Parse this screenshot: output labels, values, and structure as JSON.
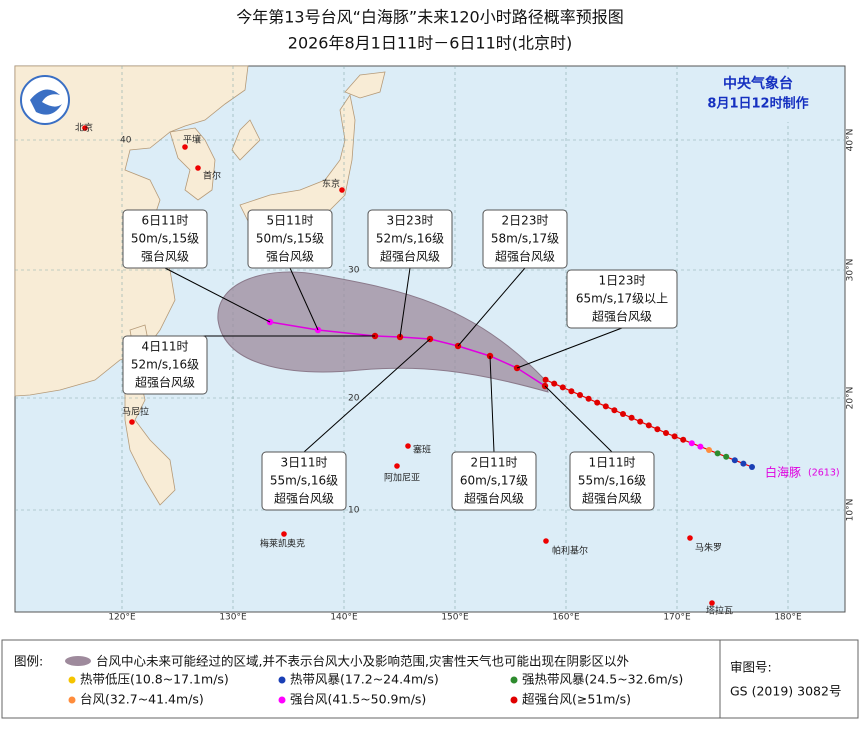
{
  "header": {
    "title": "今年第13号台风“白海豚”未来120小时路径概率预报图",
    "subtitle": "2026年8月1日11时－6日11时(北京时)"
  },
  "agency": {
    "name": "中央气象台",
    "issued": "8月1日12时制作"
  },
  "map": {
    "cities": [
      "北京",
      "平壤",
      "首尔",
      "东京",
      "马尼拉",
      "塞班",
      "阿加尼亚",
      "梅莱凯奥克",
      "帕利基尔",
      "马朱罗",
      "塔拉瓦"
    ],
    "lon_labels": [
      "120°E",
      "130°E",
      "140°E",
      "150°E",
      "160°E",
      "170°E",
      "180°E"
    ],
    "lat_labels": [
      "40°N",
      "30°N",
      "20°N",
      "10°N"
    ],
    "grid_labels": [
      "40",
      "30",
      "20",
      "10"
    ]
  },
  "typhoon": {
    "name": "白海豚",
    "number": "(2613)"
  },
  "forecasts": [
    {
      "time": "6日11时",
      "wind": "50m/s,15级",
      "category": "强台风级"
    },
    {
      "time": "5日11时",
      "wind": "50m/s,15级",
      "category": "强台风级"
    },
    {
      "time": "3日23时",
      "wind": "52m/s,16级",
      "category": "超强台风级"
    },
    {
      "time": "2日23时",
      "wind": "58m/s,17级",
      "category": "超强台风级"
    },
    {
      "time": "1日23时",
      "wind": "65m/s,17级以上",
      "category": "超强台风级"
    },
    {
      "time": "4日11时",
      "wind": "52m/s,16级",
      "category": "超强台风级"
    },
    {
      "time": "3日11时",
      "wind": "55m/s,16级",
      "category": "超强台风级"
    },
    {
      "time": "2日11时",
      "wind": "60m/s,17级",
      "category": "超强台风级"
    },
    {
      "time": "1日11时",
      "wind": "55m/s,16级",
      "category": "超强台风级"
    }
  ],
  "legend": {
    "label": "图例:",
    "cone": "台风中心未来可能经过的区域,并不表示台风大小及影响范围,灾害性天气也可能出现在阴影区以外",
    "items": [
      "热带低压(10.8~17.1m/s)",
      "热带风暴(17.2~24.4m/s)",
      "强热带风暴(24.5~32.6m/s)",
      "台风(32.7~41.4m/s)",
      "强台风(41.5~50.9m/s)",
      "超强台风(≥51m/s)"
    ]
  },
  "approval": {
    "label": "审图号:",
    "number": "GS (2019) 3082号"
  }
}
